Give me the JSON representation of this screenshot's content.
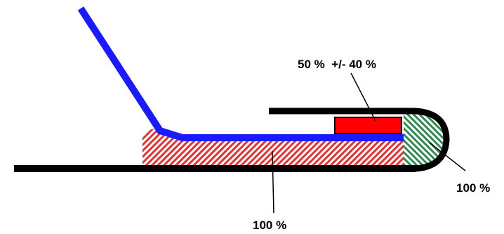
{
  "labels": [
    "50 %  +/- 40 %",
    "100 %",
    "100 %"
  ]
}
